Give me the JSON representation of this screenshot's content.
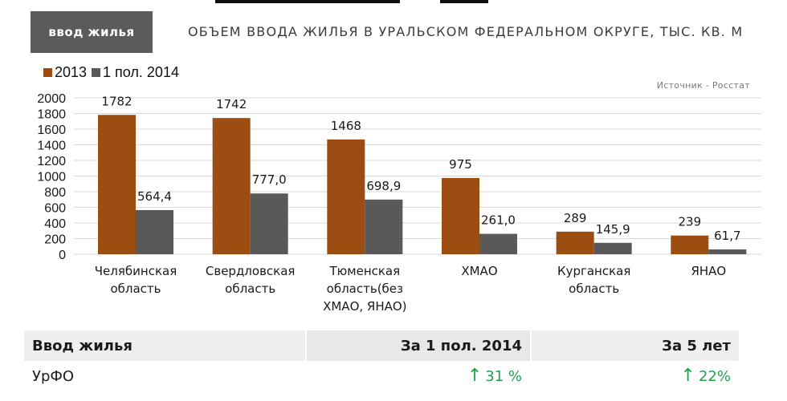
{
  "header": {
    "tag": "ввод жилья",
    "title": "ОБЪЕМ ВВОДА ЖИЛЬЯ В УРАЛЬСКОМ ФЕДЕРАЛЬНОМ ОКРУГЕ, ТЫС. КВ. М"
  },
  "source": "Источник - Росстат",
  "colors": {
    "s2013": "#9b4d12",
    "s2014": "#595959",
    "grid": "#d9d9d9",
    "up": "#22a052"
  },
  "chart_data": {
    "type": "bar",
    "title": "ОБЪЕМ ВВОДА ЖИЛЬЯ В УРАЛЬСКОМ ФЕДЕРАЛЬНОМ ОКРУГЕ, ТЫС. КВ. М",
    "categories": [
      [
        "Челябинская",
        "область"
      ],
      [
        "Свердловская",
        "область"
      ],
      [
        "Тюменская",
        "область(без",
        "ХМАО, ЯНАО)"
      ],
      [
        "ХМАО"
      ],
      [
        "Курганская",
        "область"
      ],
      [
        "ЯНАО"
      ]
    ],
    "series": [
      {
        "name": "2013",
        "values": [
          1782,
          1742,
          1468,
          975,
          289,
          239
        ],
        "labels": [
          "1782",
          "1742",
          "1468",
          "975",
          "289",
          "239"
        ]
      },
      {
        "name": "1 пол. 2014",
        "values": [
          564.4,
          777.0,
          698.9,
          261.0,
          145.9,
          61.7
        ],
        "labels": [
          "564,4",
          "777,0",
          "698,9",
          "261,0",
          "145,9",
          "61,7"
        ]
      }
    ],
    "ylim": [
      0,
      2000
    ],
    "yticks": [
      0,
      200,
      400,
      600,
      800,
      1000,
      1200,
      1400,
      1600,
      1800,
      2000
    ],
    "grid": true,
    "legend": "top-left"
  },
  "table": {
    "headers": [
      "Ввод жилья",
      "За 1 пол. 2014",
      "За 5 лет"
    ],
    "rows": [
      {
        "name": "УрФО",
        "v1": "31 %",
        "v2": "22%"
      }
    ]
  }
}
